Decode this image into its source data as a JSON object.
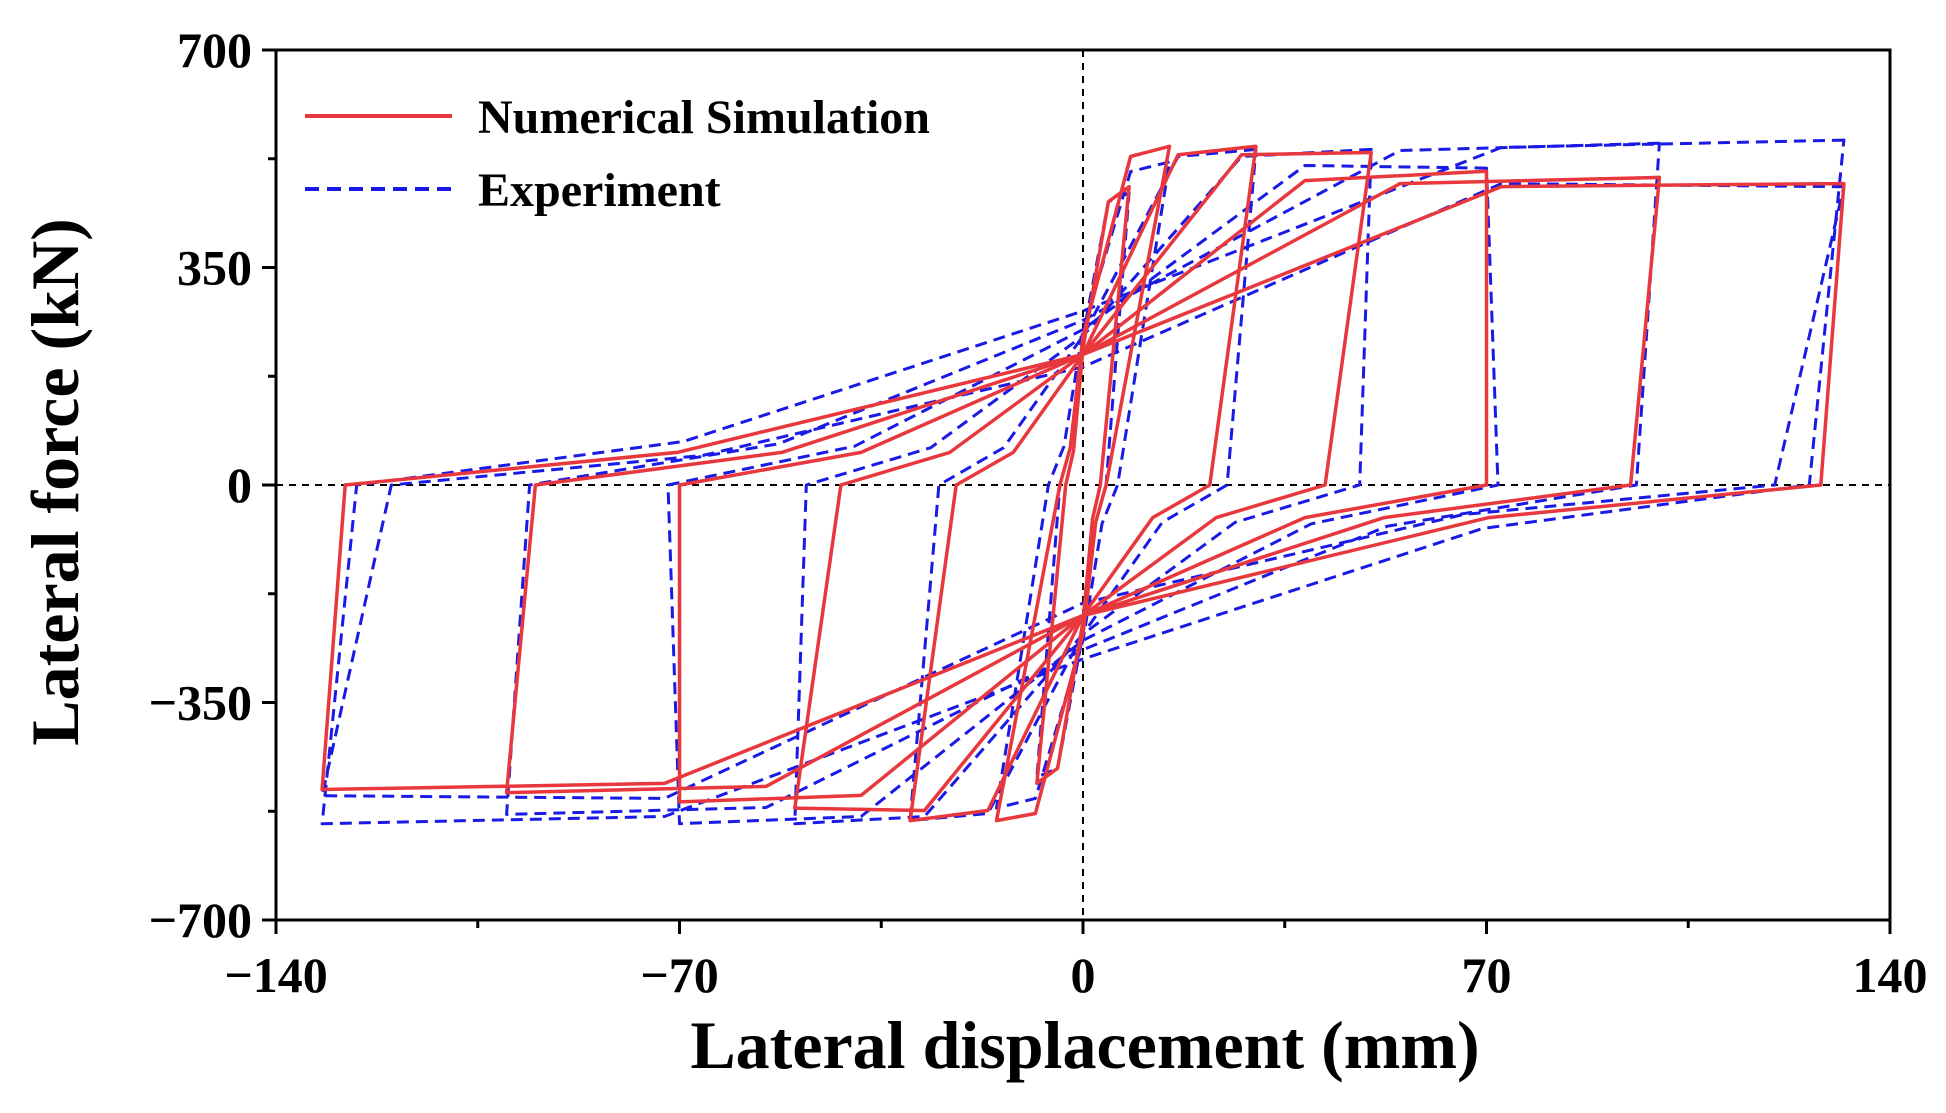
{
  "chart_data": {
    "type": "line",
    "title": "",
    "xlabel": "Lateral displacement (mm)",
    "ylabel": "Lateral force (kN)",
    "xlim": [
      -140,
      140
    ],
    "ylim": [
      -700,
      700
    ],
    "x_ticks": [
      -140,
      -70,
      0,
      70,
      140
    ],
    "x_tick_labels": [
      "−140",
      "−70",
      "0",
      "70",
      "140"
    ],
    "y_ticks": [
      -700,
      -350,
      0,
      350,
      700
    ],
    "y_tick_labels": [
      "−700",
      "−350",
      "0",
      "350",
      "700"
    ],
    "grid": false,
    "zero_reference_lines": true,
    "legend_position": "top-left",
    "series": [
      {
        "name": "Numerical Simulation",
        "color": "#e8383d",
        "style": "solid",
        "loops": [
          {
            "d": 8,
            "fmax": 480,
            "fmin": -480,
            "rx": 3,
            "ry": 220,
            "fpmax": 470,
            "fpmin": -470
          },
          {
            "d": 15,
            "fmax": 545,
            "fmin": -540,
            "rx": 4,
            "ry": 240,
            "fpmax": 545,
            "fpmin": -545
          },
          {
            "d": 30,
            "fmax": 545,
            "fmin": -540,
            "rx": 22,
            "ry": 210,
            "fpmax": 548,
            "fpmin": -540
          },
          {
            "d": 50,
            "fmax": 535,
            "fmin": -520,
            "rx": 42,
            "ry": 210,
            "fpmax": 548,
            "fpmin": -540
          },
          {
            "d": 70,
            "fmax": 505,
            "fmin": -510,
            "rx": 70,
            "ry": 210,
            "fpmax": 505,
            "fpmin": -515
          },
          {
            "d": 100,
            "fmax": 495,
            "fmin": -495,
            "rx": 95,
            "ry": 210,
            "fpmax": 500,
            "fpmin": -500
          },
          {
            "d": 132,
            "fmax": 485,
            "fmin": -490,
            "rx": 128,
            "ry": 210,
            "fpmax": 495,
            "fpmin": -495
          }
        ]
      },
      {
        "name": "Experiment",
        "color": "#1a1ae6",
        "style": "dashed",
        "loops": [
          {
            "d": 8,
            "fmax": 470,
            "fmin": -470,
            "rx": 4,
            "ry": 240,
            "fpmax": 470,
            "fpmin": -470
          },
          {
            "d": 15,
            "fmax": 520,
            "fmin": -520,
            "rx": 6,
            "ry": 250,
            "fpmax": 520,
            "fpmin": -520
          },
          {
            "d": 30,
            "fmax": 540,
            "fmin": -540,
            "rx": 25,
            "ry": 240,
            "fpmax": 545,
            "fpmin": -545
          },
          {
            "d": 50,
            "fmax": 540,
            "fmin": -545,
            "rx": 48,
            "ry": 240,
            "fpmax": 545,
            "fpmin": -550
          },
          {
            "d": 70,
            "fmax": 510,
            "fmin": -545,
            "rx": 72,
            "ry": 250,
            "fpmax": 530,
            "fpmin": -550
          },
          {
            "d": 100,
            "fmax": 550,
            "fmin": -530,
            "rx": 96,
            "ry": 265,
            "fpmax": 555,
            "fpmin": -535
          },
          {
            "d": 132,
            "fmax": 555,
            "fmin": -545,
            "rx": 126,
            "ry": 280,
            "fpmax": 560,
            "fpmin": -550
          },
          {
            "d": 132,
            "fmax": 480,
            "fmin": -500,
            "rx": 120,
            "ry": 190,
            "fpmax": 500,
            "fpmin": -520
          }
        ]
      }
    ]
  },
  "legend": {
    "items": [
      {
        "label": "Numerical Simulation",
        "color": "#e8383d",
        "style": "solid"
      },
      {
        "label": "Experiment",
        "color": "#1a1ae6",
        "style": "dashed"
      }
    ]
  }
}
